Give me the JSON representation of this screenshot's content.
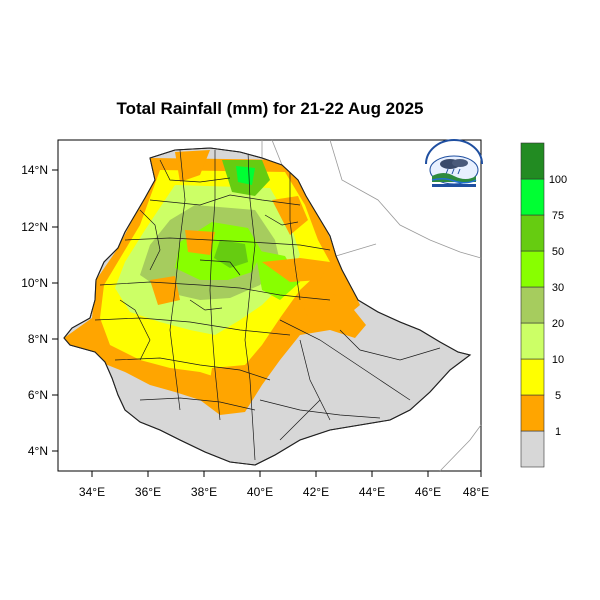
{
  "title": "Total Rainfall (mm) for 21-22 Aug 2025",
  "x_ticks": [
    "34°E",
    "36°E",
    "38°E",
    "40°E",
    "42°E",
    "44°E",
    "46°E",
    "48°E"
  ],
  "y_ticks": [
    "14°N",
    "12°N",
    "10°N",
    "8°N",
    "6°N",
    "4°N"
  ],
  "legend": {
    "labels": [
      "1",
      "5",
      "10",
      "20",
      "30",
      "50",
      "75",
      "100"
    ],
    "colors": [
      "#d7d7d7",
      "#ffa500",
      "#ffff00",
      "#ccff66",
      "#a6cc5e",
      "#88ff00",
      "#66cc11",
      "#00ff33",
      "#228b22"
    ]
  },
  "map": {
    "lon_range": [
      33,
      48.2
    ],
    "lat_range": [
      3.2,
      15.1
    ],
    "logo": "meteorology-agency-logo"
  }
}
